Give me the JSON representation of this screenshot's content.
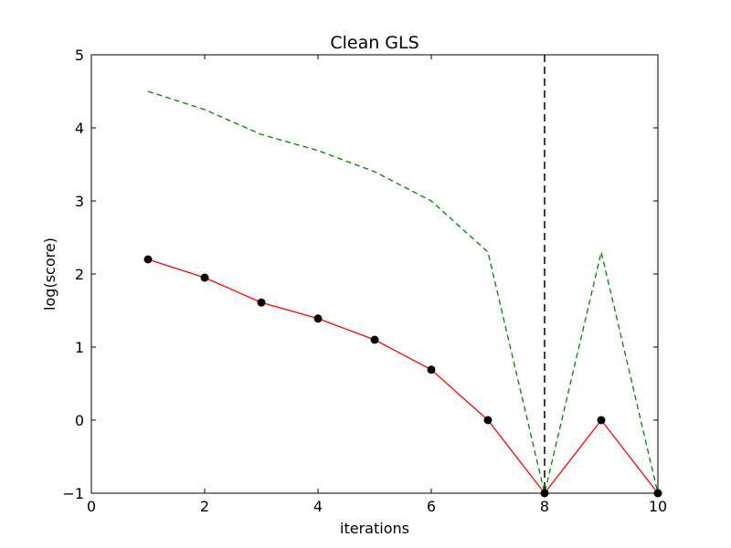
{
  "chart_data": {
    "type": "line",
    "title": "Clean GLS",
    "xlabel": "iterations",
    "ylabel": "log(score)",
    "xlim": [
      0,
      10
    ],
    "ylim": [
      -1,
      5
    ],
    "xticks": [
      0,
      2,
      4,
      6,
      8,
      10
    ],
    "yticks": [
      -1,
      0,
      1,
      2,
      3,
      4,
      5
    ],
    "xtick_labels": [
      "0",
      "2",
      "4",
      "6",
      "8",
      "10"
    ],
    "ytick_labels": [
      "−1",
      "0",
      "1",
      "2",
      "3",
      "4",
      "5"
    ],
    "grid": false,
    "series": [
      {
        "style": "solid-with-markers",
        "color": "#ff0000",
        "marker_color": "#000000",
        "x": [
          1,
          2,
          3,
          4,
          5,
          6,
          7,
          8,
          9,
          10
        ],
        "y": [
          2.2,
          1.95,
          1.61,
          1.39,
          1.1,
          0.69,
          0.0,
          -1.0,
          0.0,
          -1.0
        ]
      },
      {
        "style": "dashed",
        "color": "#008000",
        "x": [
          1,
          2,
          3,
          4,
          5,
          6,
          7,
          8,
          9,
          10
        ],
        "y": [
          4.5,
          4.25,
          3.91,
          3.69,
          3.4,
          3.0,
          2.3,
          -1.0,
          2.3,
          -1.0
        ]
      }
    ],
    "vlines": [
      {
        "x": 8,
        "style": "dashed",
        "color": "#000000"
      }
    ]
  }
}
